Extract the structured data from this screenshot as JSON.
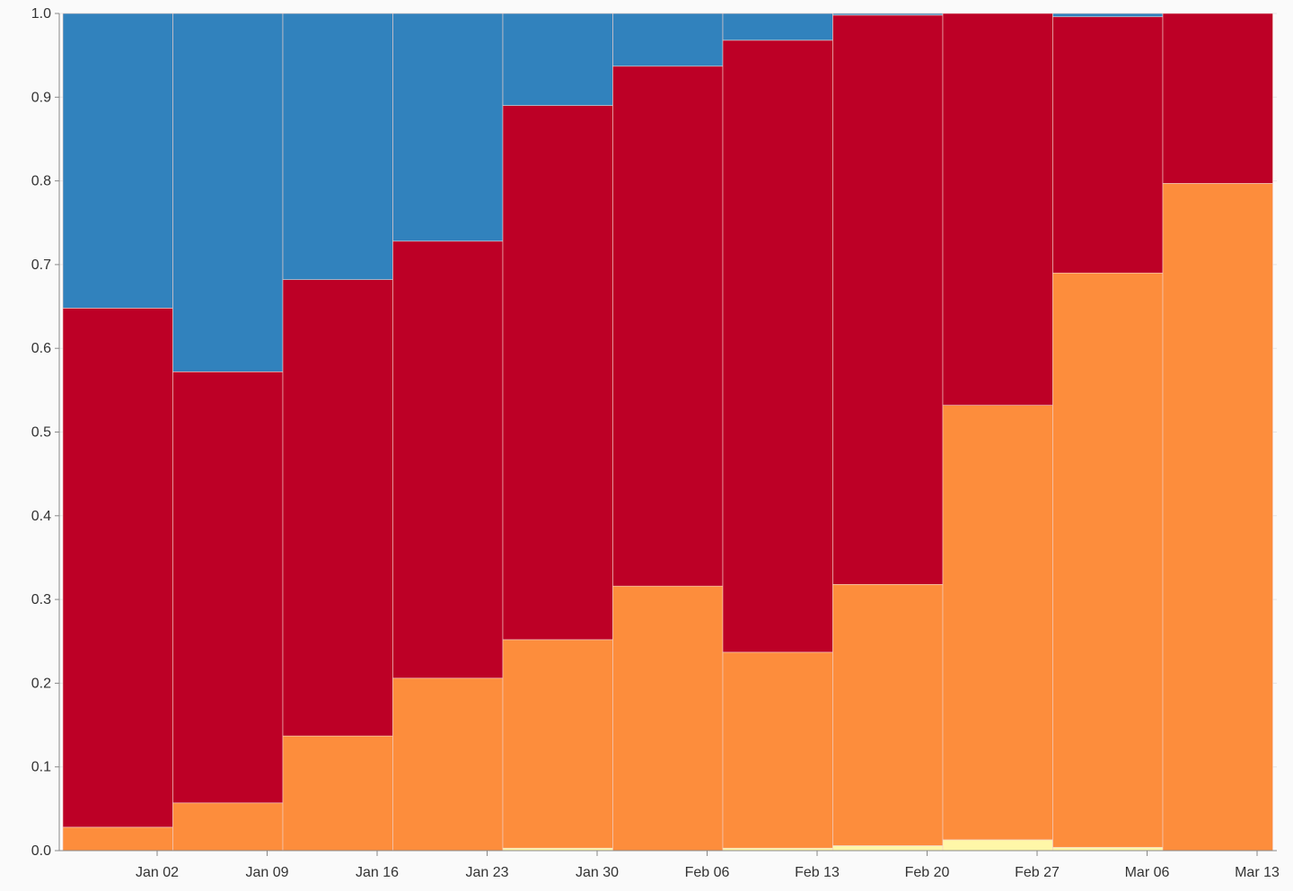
{
  "chart_data": {
    "type": "bar",
    "stacked": true,
    "normalized": true,
    "title": "",
    "xlabel": "",
    "ylabel": "",
    "ylim": [
      0,
      1.0
    ],
    "grid": true,
    "legend": "none",
    "bar_periods": [
      {
        "start": "Dec 27",
        "end": "Jan 03"
      },
      {
        "start": "Jan 03",
        "end": "Jan 10"
      },
      {
        "start": "Jan 10",
        "end": "Jan 17"
      },
      {
        "start": "Jan 17",
        "end": "Jan 24"
      },
      {
        "start": "Jan 24",
        "end": "Jan 31"
      },
      {
        "start": "Jan 31",
        "end": "Feb 07"
      },
      {
        "start": "Feb 07",
        "end": "Feb 14"
      },
      {
        "start": "Feb 14",
        "end": "Feb 21"
      },
      {
        "start": "Feb 21",
        "end": "Feb 28"
      },
      {
        "start": "Feb 28",
        "end": "Mar 07"
      },
      {
        "start": "Mar 07",
        "end": "Mar 14"
      }
    ],
    "x_tick_labels": [
      "Jan 02",
      "Jan 09",
      "Jan 16",
      "Jan 23",
      "Jan 30",
      "Feb 06",
      "Feb 13",
      "Feb 20",
      "Feb 27",
      "Mar 06",
      "Mar 13"
    ],
    "y_tick_labels": [
      "0.0",
      "0.1",
      "0.2",
      "0.3",
      "0.4",
      "0.5",
      "0.6",
      "0.7",
      "0.8",
      "0.9",
      "1.0"
    ],
    "series": [
      {
        "color": "#fff7a8",
        "values": [
          0,
          0,
          0,
          0,
          0.003,
          0,
          0.003,
          0.006,
          0.013,
          0.004,
          0
        ]
      },
      {
        "color": "#fd8d3c",
        "values": [
          0.028,
          0.057,
          0.137,
          0.206,
          0.249,
          0.316,
          0.234,
          0.312,
          0.519,
          0.686,
          0.797
        ]
      },
      {
        "color": "#bd0026",
        "values": [
          0.62,
          0.515,
          0.545,
          0.522,
          0.638,
          0.621,
          0.731,
          0.68,
          0.468,
          0.306,
          0.203
        ]
      },
      {
        "color": "#3182bd",
        "values": [
          0.352,
          0.428,
          0.318,
          0.272,
          0.11,
          0.063,
          0.032,
          0.002,
          0,
          0.004,
          0
        ]
      }
    ]
  }
}
